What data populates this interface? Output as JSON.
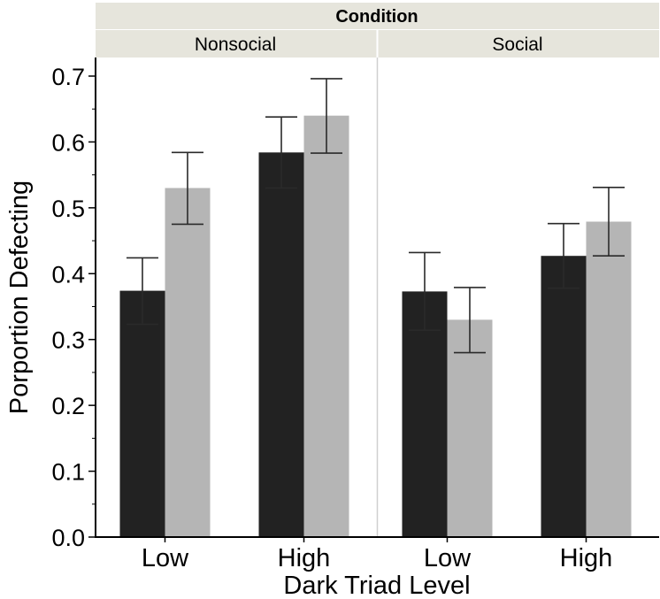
{
  "chart_data": {
    "type": "bar",
    "title": "",
    "strip_title": "Condition",
    "panels": [
      {
        "name": "Nonsocial",
        "categories": [
          "Low",
          "High"
        ],
        "series": [
          {
            "name": "dark",
            "color": "#222222",
            "values": [
              0.374,
              0.584
            ],
            "err_low": [
              0.323,
              0.53
            ],
            "err_high": [
              0.424,
              0.638
            ]
          },
          {
            "name": "light",
            "color": "#b5b5b5",
            "values": [
              0.53,
              0.64
            ],
            "err_low": [
              0.475,
              0.583
            ],
            "err_high": [
              0.584,
              0.696
            ]
          }
        ]
      },
      {
        "name": "Social",
        "categories": [
          "Low",
          "High"
        ],
        "series": [
          {
            "name": "dark",
            "color": "#222222",
            "values": [
              0.373,
              0.427
            ],
            "err_low": [
              0.314,
              0.378
            ],
            "err_high": [
              0.432,
              0.476
            ]
          },
          {
            "name": "light",
            "color": "#b5b5b5",
            "values": [
              0.33,
              0.479
            ],
            "err_low": [
              0.28,
              0.427
            ],
            "err_high": [
              0.379,
              0.531
            ]
          }
        ]
      }
    ],
    "xlabel": "Dark Triad Level",
    "ylabel": "Porportion Defecting",
    "ylim": [
      0,
      0.7
    ],
    "yticks": [
      "0.0",
      "0.1",
      "0.2",
      "0.3",
      "0.4",
      "0.5",
      "0.6",
      "0.7"
    ],
    "grid": false,
    "colors": {
      "strip_bg": "#e6e5dc",
      "axis": "#000000"
    }
  }
}
